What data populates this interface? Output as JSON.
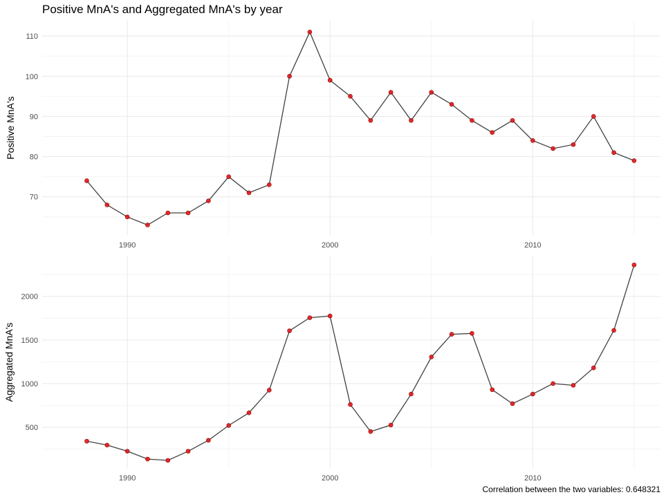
{
  "chart_data": [
    {
      "type": "line",
      "title": "Positive MnA's and Aggregated MnA's by year",
      "xlabel": "",
      "ylabel": "Positive MnA's",
      "x": [
        1988,
        1989,
        1990,
        1991,
        1992,
        1993,
        1994,
        1995,
        1996,
        1997,
        1998,
        1999,
        2000,
        2001,
        2002,
        2003,
        2004,
        2005,
        2006,
        2007,
        2008,
        2009,
        2010,
        2011,
        2012,
        2013,
        2014,
        2015
      ],
      "values": [
        74,
        68,
        65,
        63,
        66,
        66,
        69,
        75,
        71,
        73,
        100,
        111,
        99,
        95,
        89,
        96,
        89,
        96,
        93,
        89,
        86,
        89,
        84,
        82,
        83,
        90,
        81,
        79
      ],
      "xlim": [
        1985.8,
        2016.3
      ],
      "ylim": [
        60.5,
        113.8
      ],
      "x_ticks": [
        1990,
        2000,
        2010
      ],
      "y_ticks": [
        70,
        80,
        90,
        100,
        110
      ],
      "x_tick_labels": [
        "1990",
        "2000",
        "2010"
      ],
      "y_tick_labels": [
        "70",
        "80",
        "90",
        "100",
        "110"
      ],
      "grid": true,
      "line_color": "#404040",
      "point_color": "#e31a1c"
    },
    {
      "type": "line",
      "xlabel": "",
      "ylabel": "Aggregated MnA's",
      "x": [
        1988,
        1989,
        1990,
        1991,
        1992,
        1993,
        1994,
        1995,
        1996,
        1997,
        1998,
        1999,
        2000,
        2001,
        2002,
        2003,
        2004,
        2005,
        2006,
        2007,
        2008,
        2009,
        2010,
        2011,
        2012,
        2013,
        2014,
        2015
      ],
      "values": [
        340,
        295,
        225,
        135,
        120,
        225,
        350,
        520,
        665,
        925,
        1605,
        1755,
        1775,
        760,
        450,
        525,
        880,
        1305,
        1565,
        1575,
        930,
        770,
        880,
        1000,
        980,
        1180,
        1610,
        2360
      ],
      "xlim": [
        1985.8,
        2016.3
      ],
      "ylim": [
        25,
        2465
      ],
      "x_ticks": [
        1990,
        2000,
        2010
      ],
      "y_ticks": [
        500,
        1000,
        1500,
        2000
      ],
      "x_tick_labels": [
        "1990",
        "2000",
        "2010"
      ],
      "y_tick_labels": [
        "500",
        "1000",
        "1500",
        "2000"
      ],
      "grid": true,
      "line_color": "#404040",
      "point_color": "#e31a1c"
    }
  ],
  "caption": "Correlation between the two variables: 0.648321",
  "colors": {
    "grid_major": "#ebebeb",
    "grid_minor": "#f4f4f4",
    "line": "#404040",
    "point": "#e31a1c"
  }
}
